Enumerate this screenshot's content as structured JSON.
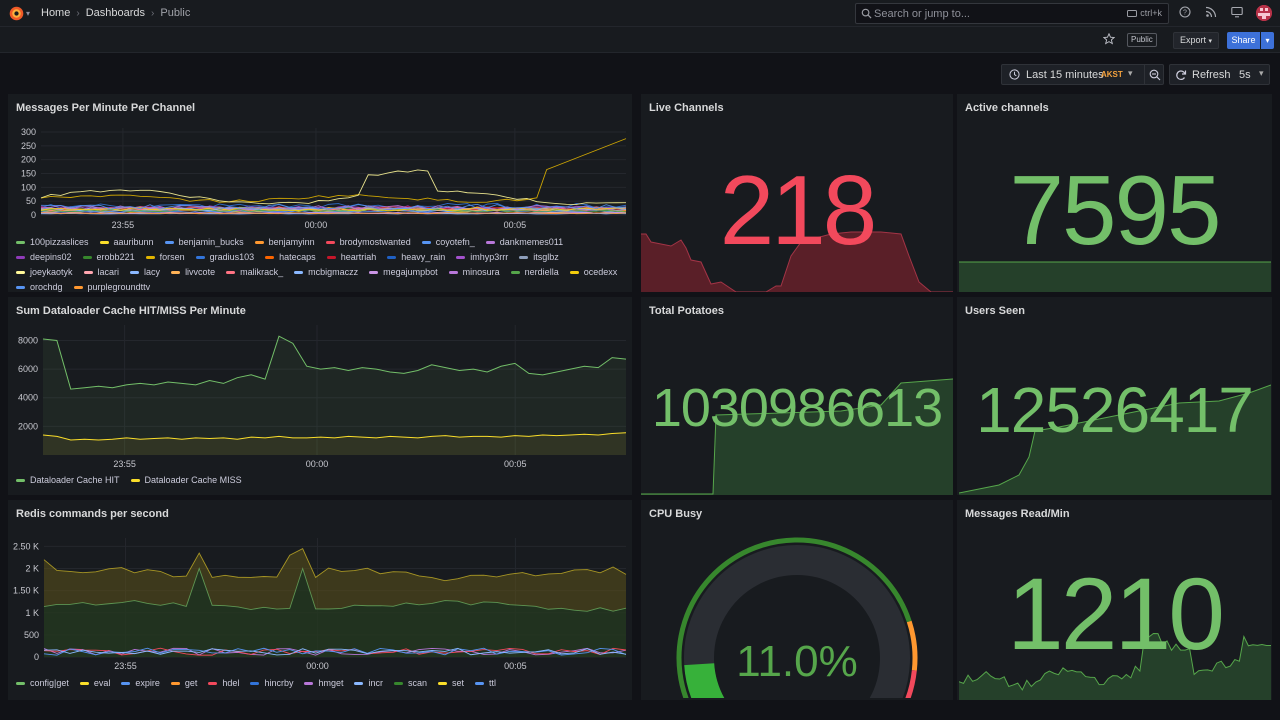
{
  "breadcrumb": {
    "home": "Home",
    "dashboards": "Dashboards",
    "current": "Public"
  },
  "search": {
    "placeholder": "Search or jump to...",
    "shortcut": "ctrl+k"
  },
  "toolbar": {
    "public_badge": "Public",
    "export_label": "Export",
    "share_label": "Share"
  },
  "time_picker": {
    "range": "Last 15 minutes",
    "timezone": "AKST"
  },
  "refresh": {
    "label": "Refresh",
    "interval": "5s"
  },
  "colors": {
    "green": "#73bf69",
    "red": "#f2495c",
    "yellow": "#fade2a",
    "blue": "#5794f2",
    "orange": "#ff9830",
    "purple": "#b877d9"
  },
  "panels": {
    "messages": {
      "title": "Messages Per Minute Per Channel",
      "legend": [
        {
          "name": "100pizzaslices",
          "color": "#73bf69"
        },
        {
          "name": "aauribunn",
          "color": "#fade2a"
        },
        {
          "name": "benjamin_bucks",
          "color": "#5794f2"
        },
        {
          "name": "benjamyinn",
          "color": "#ff9830"
        },
        {
          "name": "brodymostwanted",
          "color": "#f2495c"
        },
        {
          "name": "coyotefn_",
          "color": "#5794f2"
        },
        {
          "name": "dankmemes011",
          "color": "#b877d9"
        },
        {
          "name": "deepins02",
          "color": "#8f3bb8"
        },
        {
          "name": "erobb221",
          "color": "#37872d"
        },
        {
          "name": "forsen",
          "color": "#e0b400"
        },
        {
          "name": "gradius103",
          "color": "#3274d9"
        },
        {
          "name": "hatecaps",
          "color": "#fa6400"
        },
        {
          "name": "heartriah",
          "color": "#c4162a"
        },
        {
          "name": "heavy_rain",
          "color": "#1f60c4"
        },
        {
          "name": "imhyp3rrr",
          "color": "#a352cc"
        },
        {
          "name": "itsglbz",
          "color": "#8e9eba"
        },
        {
          "name": "joeykaotyk",
          "color": "#fff899"
        },
        {
          "name": "lacari",
          "color": "#ffa6b0"
        },
        {
          "name": "lacy",
          "color": "#8ab8ff"
        },
        {
          "name": "livvcote",
          "color": "#ffb357"
        },
        {
          "name": "malikrack_",
          "color": "#ff7383"
        },
        {
          "name": "mcbigmaczz",
          "color": "#8ab8ff"
        },
        {
          "name": "megajumpbot",
          "color": "#ca95e5"
        },
        {
          "name": "minosura",
          "color": "#b877d9"
        },
        {
          "name": "nerdiella",
          "color": "#56a64b"
        },
        {
          "name": "ocedexx",
          "color": "#f2cc0c"
        },
        {
          "name": "orochdg",
          "color": "#5794f2"
        },
        {
          "name": "purplegroundttv",
          "color": "#ff9830"
        }
      ],
      "chart_data": {
        "type": "line",
        "x_ticks": [
          "23:55",
          "00:00",
          "00:05"
        ],
        "y_ticks": [
          0,
          50,
          100,
          150,
          200,
          250,
          300
        ],
        "ylim": [
          0,
          300
        ]
      }
    },
    "live_channels": {
      "title": "Live Channels",
      "value": "218"
    },
    "active_channels": {
      "title": "Active channels",
      "value": "7595"
    },
    "dataloader": {
      "title": "Sum Dataloader Cache HIT/MISS Per Minute",
      "legend": [
        {
          "name": "Dataloader Cache HIT",
          "color": "#73bf69"
        },
        {
          "name": "Dataloader Cache MISS",
          "color": "#fade2a"
        }
      ],
      "chart_data": {
        "type": "line",
        "x_ticks": [
          "23:55",
          "00:00",
          "00:05"
        ],
        "y_ticks": [
          2000,
          4000,
          6000,
          8000
        ],
        "ylim": [
          0,
          8800
        ],
        "series": [
          {
            "name": "Dataloader Cache HIT",
            "values": [
              8100,
              8000,
              4600,
              4700,
              4800,
              4700,
              4900,
              5000,
              4900,
              5100,
              5000,
              4900,
              5200,
              5000,
              5400,
              5600,
              5300,
              8300,
              7800,
              6200,
              6000,
              6100,
              5900,
              6100,
              6000,
              5800,
              5700,
              5900,
              6300,
              6100,
              5900,
              6000,
              5800,
              6200,
              6400,
              5700,
              5600,
              5800,
              6000,
              6200,
              6100,
              6800,
              6700
            ]
          },
          {
            "name": "Dataloader Cache MISS",
            "values": [
              1400,
              1300,
              1050,
              1100,
              1050,
              1100,
              1200,
              1100,
              1150,
              1200,
              1100,
              1200,
              1150,
              1200,
              1100,
              1250,
              1200,
              1300,
              1200,
              1200,
              1250,
              1200,
              1300,
              1250,
              1200,
              1300,
              1250,
              1200,
              1300,
              1350,
              1250,
              1300,
              1300,
              1250,
              1350,
              1300,
              1400,
              1350,
              1400,
              1450,
              1400,
              1500,
              1550
            ]
          }
        ]
      }
    },
    "total_potatoes": {
      "title": "Total Potatoes",
      "value": "1030986613"
    },
    "users_seen": {
      "title": "Users Seen",
      "value": "12526417"
    },
    "redis": {
      "title": "Redis commands per second",
      "legend": [
        {
          "name": "config|get",
          "color": "#73bf69"
        },
        {
          "name": "eval",
          "color": "#fade2a"
        },
        {
          "name": "expire",
          "color": "#5794f2"
        },
        {
          "name": "get",
          "color": "#ff9830"
        },
        {
          "name": "hdel",
          "color": "#f2495c"
        },
        {
          "name": "hincrby",
          "color": "#3274d9"
        },
        {
          "name": "hmget",
          "color": "#b877d9"
        },
        {
          "name": "incr",
          "color": "#8ab8ff"
        },
        {
          "name": "scan",
          "color": "#37872d"
        },
        {
          "name": "set",
          "color": "#fade2a"
        },
        {
          "name": "ttl",
          "color": "#5794f2"
        }
      ],
      "chart_data": {
        "type": "area",
        "x_ticks": [
          "23:55",
          "00:00",
          "00:05"
        ],
        "y_ticks": [
          "0",
          "500",
          "1 K",
          "1.50 K",
          "2 K",
          "2.50 K"
        ],
        "ylim": [
          0,
          2600
        ]
      }
    },
    "cpu_busy": {
      "title": "CPU Busy",
      "value": "11.0%",
      "fraction": 0.11
    },
    "messages_read": {
      "title": "Messages Read/Min",
      "value": "1210"
    }
  }
}
